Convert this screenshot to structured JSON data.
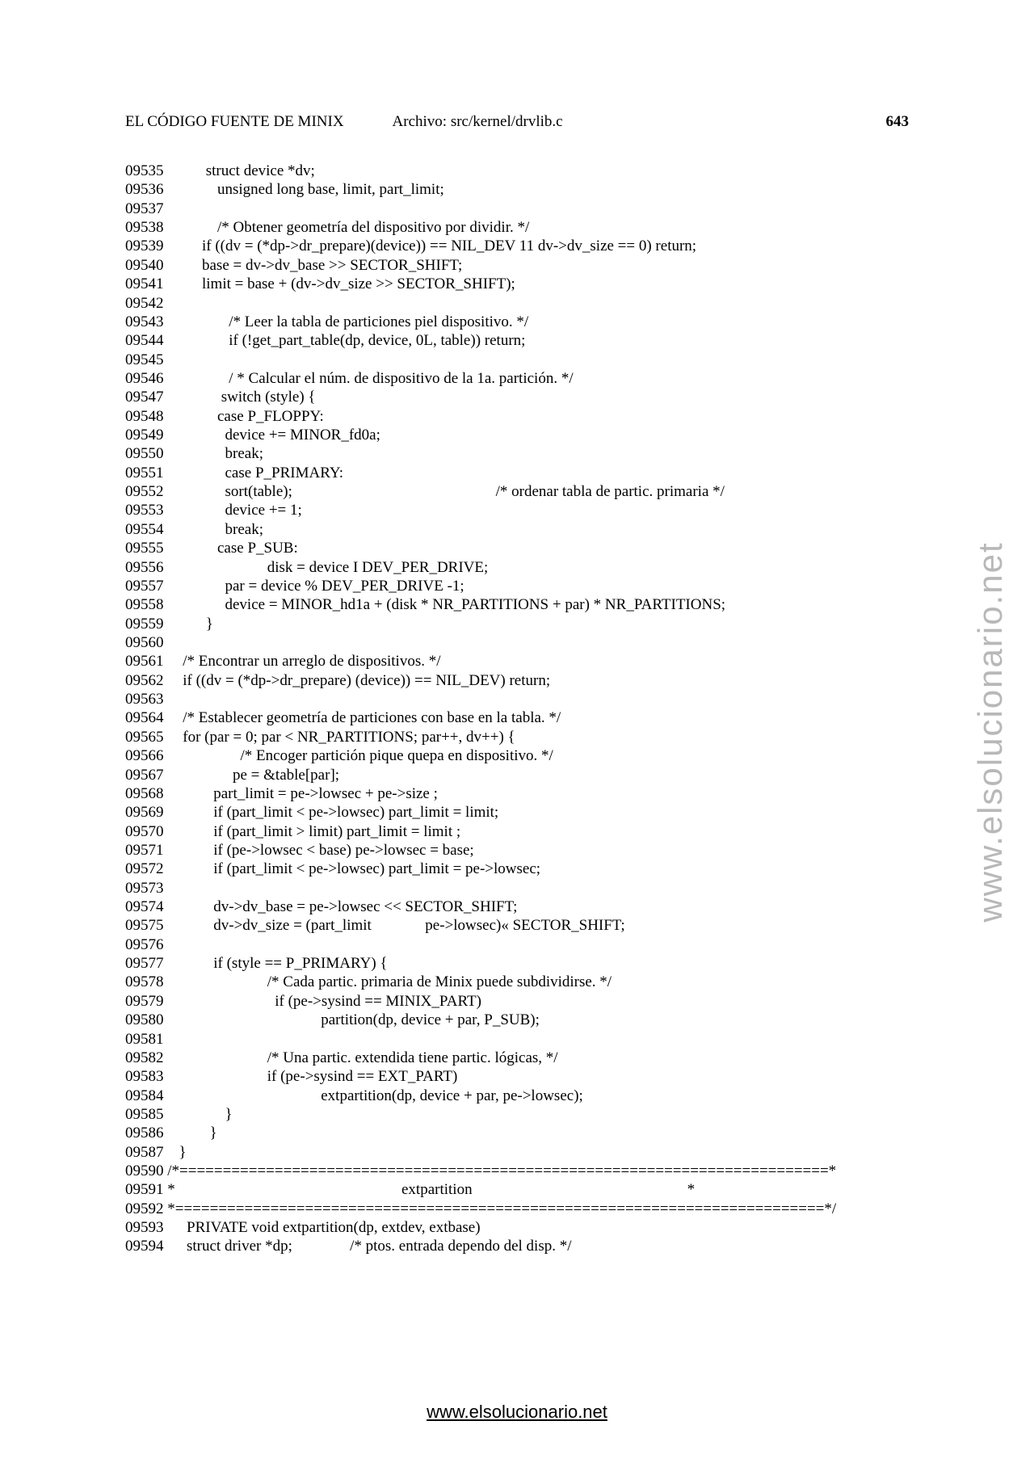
{
  "header": {
    "title_left": "EL CÓDIGO FUENTE DE MINIX",
    "file_label": "Archivo: src/kernel/drvlib.c",
    "page_number": "643"
  },
  "watermark": {
    "side_text": "www.elsolucionario.net",
    "footer_text": "www.elsolucionario.net"
  },
  "code": {
    "lines": [
      {
        "num": "09535",
        "text": "          struct device *dv;"
      },
      {
        "num": "09536",
        "text": "             unsigned long base, limit, part_limit;"
      },
      {
        "num": "09537",
        "text": ""
      },
      {
        "num": "09538",
        "text": "             /* Obtener geometría del dispositivo por dividir. */"
      },
      {
        "num": "09539",
        "text": "         if ((dv = (*dp->dr_prepare)(device)) == NIL_DEV 11 dv->dv_size == 0) return;"
      },
      {
        "num": "09540",
        "text": "         base = dv->dv_base >> SECTOR_SHIFT;"
      },
      {
        "num": "09541",
        "text": "         limit = base + (dv->dv_size >> SECTOR_SHIFT);"
      },
      {
        "num": "09542",
        "text": ""
      },
      {
        "num": "09543",
        "text": "                /* Leer la tabla de particiones piel dispositivo. */"
      },
      {
        "num": "09544",
        "text": "                if (!get_part_table(dp, device, 0L, table)) return;"
      },
      {
        "num": "09545",
        "text": ""
      },
      {
        "num": "09546",
        "text": "                / * Calcular el núm. de dispositivo de la 1a. partición. */"
      },
      {
        "num": "09547",
        "text": "              switch (style) {"
      },
      {
        "num": "09548",
        "text": "             case P_FLOPPY:"
      },
      {
        "num": "09549",
        "text": "               device += MINOR_fd0a;"
      },
      {
        "num": "09550",
        "text": "               break;"
      },
      {
        "num": "09551",
        "text": "               case P_PRIMARY:"
      },
      {
        "num": "09552",
        "text": "               sort(table);                                                     /* ordenar tabla de partic. primaria */"
      },
      {
        "num": "09553",
        "text": "               device += 1;"
      },
      {
        "num": "09554",
        "text": "               break;"
      },
      {
        "num": "09555",
        "text": "             case P_SUB:"
      },
      {
        "num": "09556",
        "text": "                          disk = device I DEV_PER_DRIVE;"
      },
      {
        "num": "09557",
        "text": "               par = device % DEV_PER_DRIVE -1;"
      },
      {
        "num": "09558",
        "text": "               device = MINOR_hd1a + (disk * NR_PARTITIONS + par) * NR_PARTITIONS;"
      },
      {
        "num": "09559",
        "text": "          }"
      },
      {
        "num": "09560",
        "text": ""
      },
      {
        "num": "09561",
        "text": "    /* Encontrar un arreglo de dispositivos. */"
      },
      {
        "num": "09562",
        "text": "    if ((dv = (*dp->dr_prepare) (device)) == NIL_DEV) return;"
      },
      {
        "num": "09563",
        "text": ""
      },
      {
        "num": "09564",
        "text": "    /* Establecer geometría de particiones con base en la tabla. */"
      },
      {
        "num": "09565",
        "text": "    for (par = 0; par < NR_PARTITIONS; par++, dv++) {"
      },
      {
        "num": "09566",
        "text": "                   /* Encoger partición pique quepa en dispositivo. */"
      },
      {
        "num": "09567",
        "text": "                 pe = &table[par];"
      },
      {
        "num": "09568",
        "text": "            part_limit = pe->lowsec + pe->size ;"
      },
      {
        "num": "09569",
        "text": "            if (part_limit < pe->lowsec) part_limit = limit;"
      },
      {
        "num": "09570",
        "text": "            if (part_limit > limit) part_limit = limit ;"
      },
      {
        "num": "09571",
        "text": "            if (pe->lowsec < base) pe->lowsec = base;"
      },
      {
        "num": "09572",
        "text": "            if (part_limit < pe->lowsec) part_limit = pe->lowsec;"
      },
      {
        "num": "09573",
        "text": ""
      },
      {
        "num": "09574",
        "text": "            dv->dv_base = pe->lowsec << SECTOR_SHIFT;"
      },
      {
        "num": "09575",
        "text": "            dv->dv_size = (part_limit              pe->lowsec)« SECTOR_SHIFT;"
      },
      {
        "num": "09576",
        "text": ""
      },
      {
        "num": "09577",
        "text": "            if (style == P_PRIMARY) {"
      },
      {
        "num": "09578",
        "text": "                          /* Cada partic. primaria de Minix puede subdividirse. */"
      },
      {
        "num": "09579",
        "text": "                            if (pe->sysind == MINIX_PART)"
      },
      {
        "num": "09580",
        "text": "                                        partition(dp, device + par, P_SUB);"
      },
      {
        "num": "09581",
        "text": ""
      },
      {
        "num": "09582",
        "text": "                          /* Una partic. extendida tiene partic. lógicas, */"
      },
      {
        "num": "09583",
        "text": "                          if (pe->sysind == EXT_PART)"
      },
      {
        "num": "09584",
        "text": "                                        extpartition(dp, device + par, pe->lowsec);"
      },
      {
        "num": "09585",
        "text": "               }"
      },
      {
        "num": "09586",
        "text": "           }"
      },
      {
        "num": "09587",
        "text": "   }"
      },
      {
        "num": "09590",
        "text": "/*===========================================================================*"
      },
      {
        "num": "09591",
        "text": "*                                                           extpartition                                                        *"
      },
      {
        "num": "09592",
        "text": "*===========================================================================*/"
      },
      {
        "num": "09593",
        "text": "     PRIVATE void extpartition(dp, extdev, extbase)"
      },
      {
        "num": "09594",
        "text": "     struct driver *dp;               /* ptos. entrada dependo del disp. */"
      }
    ]
  }
}
